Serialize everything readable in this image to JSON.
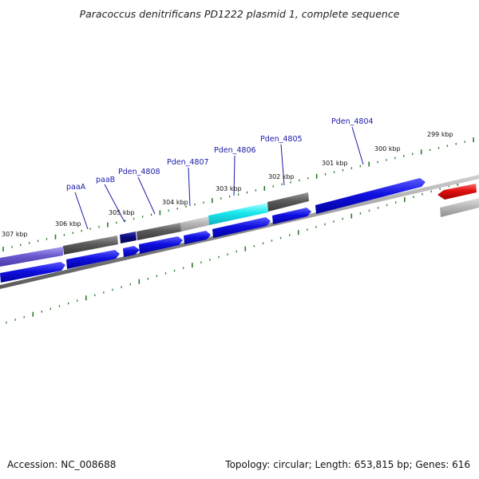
{
  "title": "Paracoccus denitrificans PD1222 plasmid 1, complete sequence",
  "footer": {
    "accession": "Accession: NC_008688",
    "summary": "Topology: circular; Length: 653,815 bp; Genes: 616"
  },
  "colors": {
    "tick": "#2a7a2a",
    "backbone": "#7a7a7a",
    "forward_gene": "#1010d8",
    "label": "#1a1aa8",
    "red_gene": "#e01010",
    "cyan_gene": "#18e8ee",
    "dark_gene": "#5a5a5a",
    "light_gene": "#b8b8b8",
    "navy_gene": "#0a0a80",
    "lavender_gene": "#6a5ad0"
  },
  "scale_labels": [
    "307 kbp",
    "306 kbp",
    "305 kbp",
    "304 kbp",
    "303 kbp",
    "302 kbp",
    "301 kbp",
    "300 kbp",
    "299 kbp"
  ],
  "gene_labels": [
    "paaA",
    "paaB",
    "Pden_4808",
    "Pden_4807",
    "Pden_4806",
    "Pden_4805",
    "Pden_4804"
  ]
}
